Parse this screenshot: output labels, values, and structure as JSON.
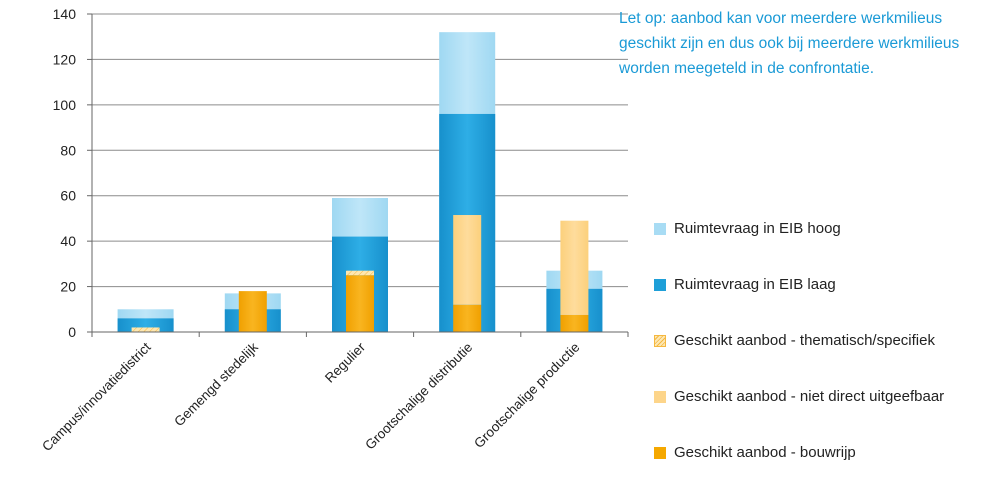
{
  "note": "Let op: aanbod kan voor meerdere werkmilieus geschikt zijn en dus ook bij meerdere werkmilieus worden meegeteld in de confrontatie.",
  "colors": {
    "eib_hoog": "#a8dcf4",
    "eib_laag": "#1e9fd8",
    "thematisch": "#fde7b2",
    "niet_direct": "#fdd58a",
    "bouwrijp": "#f5a800",
    "grid": "#8c8c8c",
    "note_text": "#1a9ad6"
  },
  "chart_data": {
    "type": "bar",
    "title": "",
    "xlabel": "",
    "ylabel": "",
    "ylim": [
      0,
      140
    ],
    "yticks": [
      0,
      20,
      40,
      60,
      80,
      100,
      120,
      140
    ],
    "grid": true,
    "legend_position": "right",
    "categories": [
      "Campus/innovatiedistrict",
      "Gemengd stedelijk",
      "Regulier",
      "Grootschalige distributie",
      "Grootschalige productie"
    ],
    "demand_series": [
      {
        "name": "Ruimtevraag in EIB hoog",
        "values": [
          10,
          17,
          59,
          132,
          27
        ]
      },
      {
        "name": "Ruimtevraag in EIB laag",
        "values": [
          6,
          10,
          42,
          96,
          19
        ]
      }
    ],
    "supply_series": [
      {
        "name": "Geschikt aanbod - bouwrijp",
        "values": [
          0,
          18,
          25,
          12,
          7.5
        ]
      },
      {
        "name": "Geschikt aanbod - niet direct uitgeefbaar",
        "values": [
          0,
          0,
          0,
          39.5,
          41.5
        ]
      },
      {
        "name": "Geschikt aanbod - thematisch/specifiek",
        "values": [
          2,
          0,
          2,
          0,
          0
        ]
      }
    ]
  },
  "legend": [
    {
      "label": "Ruimtevraag in EIB hoog",
      "color_key": "eib_hoog"
    },
    {
      "label": "Ruimtevraag in EIB laag",
      "color_key": "eib_laag"
    },
    {
      "label": "Geschikt aanbod - thematisch/specifiek",
      "color_key": "thematisch"
    },
    {
      "label": "Geschikt aanbod - niet direct uitgeefbaar",
      "color_key": "niet_direct"
    },
    {
      "label": "Geschikt aanbod - bouwrijp",
      "color_key": "bouwrijp"
    }
  ]
}
